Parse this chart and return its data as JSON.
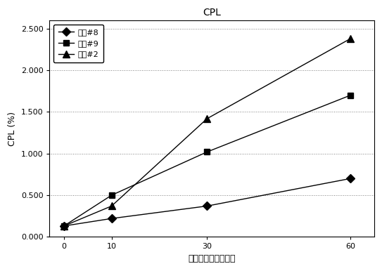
{
  "title": "CPL",
  "xlabel": "経時変化時間（分）",
  "ylabel": "CPL (%)",
  "x": [
    0,
    10,
    30,
    60
  ],
  "series": [
    {
      "label": "樹脂#8",
      "y": [
        0.13,
        0.22,
        0.37,
        0.7
      ],
      "color": "#000000",
      "marker": "D",
      "markersize": 6,
      "linestyle": "-"
    },
    {
      "label": "樹脂#9",
      "y": [
        0.13,
        0.5,
        1.02,
        1.7
      ],
      "color": "#000000",
      "marker": "s",
      "markersize": 6,
      "linestyle": "-"
    },
    {
      "label": "樹脂#2",
      "y": [
        0.13,
        0.37,
        1.42,
        2.38
      ],
      "color": "#000000",
      "marker": "^",
      "markersize": 7,
      "linestyle": "-"
    }
  ],
  "xlim": [
    -3,
    65
  ],
  "ylim": [
    0.0,
    2.6
  ],
  "yticks": [
    0.0,
    0.5,
    1.0,
    1.5,
    2.0,
    2.5
  ],
  "xticks": [
    0,
    10,
    30,
    60
  ],
  "background_color": "#ffffff",
  "plot_bg_color": "#ffffff",
  "grid_color": "#808080",
  "title_fontsize": 10,
  "label_fontsize": 9,
  "tick_fontsize": 8,
  "legend_fontsize": 8
}
